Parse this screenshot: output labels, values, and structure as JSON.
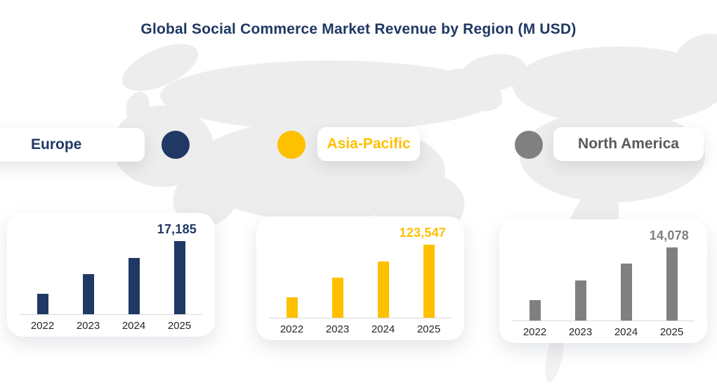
{
  "title": "Global Social Commerce Market Revenue by Region (M USD)",
  "legend": {
    "europe": {
      "label": "Europe",
      "dot_color": "#1f3864",
      "text_color": "#1f3864"
    },
    "asia_pacific": {
      "label": "Asia-Pacific",
      "dot_color": "#ffc000",
      "text_color": "#ffc000"
    },
    "north_america": {
      "label": "North America",
      "dot_color": "#808080",
      "text_color": "#595959"
    }
  },
  "chart_data": [
    {
      "type": "bar",
      "region": "Europe",
      "categories": [
        "2022",
        "2023",
        "2024",
        "2025"
      ],
      "values": [
        4800,
        9400,
        13200,
        17185
      ],
      "values_note": "only 2025 value labeled on chart; 2022-2024 estimated from bar heights",
      "data_label": "17,185",
      "labeled_bar": "2025",
      "color": "#1f3864",
      "label_color": "#1f3864",
      "axis_line_color": "#d9d9d9",
      "ylim": [
        0,
        17185
      ],
      "grid": false
    },
    {
      "type": "bar",
      "region": "Asia-Pacific",
      "categories": [
        "2022",
        "2023",
        "2024",
        "2025"
      ],
      "values": [
        34000,
        68000,
        94500,
        123547
      ],
      "values_note": "only 2025 value labeled on chart; 2022-2024 estimated from bar heights",
      "data_label": "123,547",
      "labeled_bar": "2025",
      "color": "#ffc000",
      "label_color": "#ffc000",
      "axis_line_color": "#d9d9d9",
      "ylim": [
        0,
        123547
      ],
      "grid": false
    },
    {
      "type": "bar",
      "region": "North America",
      "categories": [
        "2022",
        "2023",
        "2024",
        "2025"
      ],
      "values": [
        3900,
        7700,
        10900,
        14078
      ],
      "values_note": "only 2025 value labeled on chart; 2022-2024 estimated from bar heights",
      "data_label": "14,078",
      "labeled_bar": "2025",
      "color": "#808080",
      "label_color": "#808080",
      "axis_line_color": "#d9d9d9",
      "ylim": [
        0,
        14078
      ],
      "grid": false
    }
  ],
  "background": {
    "map_color": "#ededed",
    "description": "faint pacific-centered world map silhouette"
  }
}
